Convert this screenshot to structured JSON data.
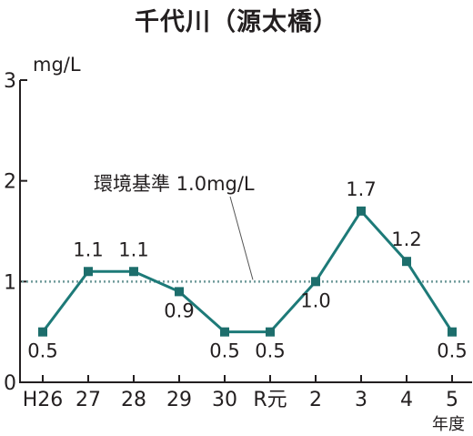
{
  "chart_data": {
    "type": "line",
    "title": "千代川（源太橋）",
    "unit_label": "mg/L",
    "x_axis_unit": "年度",
    "categories": [
      "H26",
      "27",
      "28",
      "29",
      "30",
      "R元",
      "2",
      "3",
      "4",
      "5"
    ],
    "series": [
      {
        "values": [
          0.5,
          1.1,
          1.1,
          0.9,
          0.5,
          0.5,
          1.0,
          1.7,
          1.2,
          0.5
        ]
      }
    ],
    "data_labels": [
      "0.5",
      "1.1",
      "1.1",
      "0.9",
      "0.5",
      "0.5",
      "1.0",
      "1.7",
      "1.2",
      "0.5"
    ],
    "y_ticks": [
      "0",
      "1",
      "2",
      "3"
    ],
    "ylim": [
      0,
      3
    ],
    "reference_line": {
      "value": 1.0,
      "label": "環境基準 1.0mg/L",
      "style": "dotted"
    },
    "grid": false,
    "legend": "none",
    "colors": {
      "line": "#1d7a78",
      "marker": "#1d6e6c",
      "reference": "#6f9a9a",
      "axis": "#231f20"
    }
  }
}
